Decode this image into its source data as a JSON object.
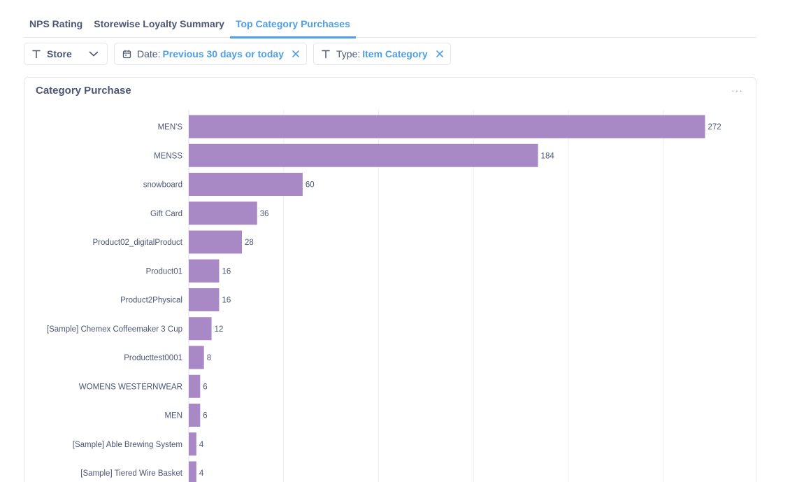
{
  "tabs": [
    {
      "label": "NPS Rating",
      "active": false
    },
    {
      "label": "Storewise Loyalty Summary",
      "active": false
    },
    {
      "label": "Top Category Purchases",
      "active": true
    }
  ],
  "filters": {
    "store": {
      "label": "Store",
      "icon": "text-type-icon"
    },
    "date": {
      "label": "Date:",
      "value": "Previous 30 days or today",
      "icon": "calendar-icon"
    },
    "type": {
      "label": "Type:",
      "value": "Item Category",
      "icon": "text-type-icon"
    }
  },
  "card": {
    "title": "Category Purchase",
    "menu": "···"
  },
  "colors": {
    "bar": "#a989c5",
    "accent": "#509ee3",
    "grid": "#edeef1",
    "text": "#4c5773"
  },
  "chart_data": {
    "type": "bar",
    "orientation": "horizontal",
    "categories": [
      "MEN'S",
      "MENSS",
      "snowboard",
      "Gift Card",
      "Product02_digitalProduct",
      "Product01",
      "Product2Physical",
      "[Sample] Chemex Coffeemaker 3 Cup",
      "Producttest0001",
      "WOMENS WESTERNWEAR",
      "MEN",
      "[Sample] Able Brewing System",
      "[Sample] Tiered Wire Basket"
    ],
    "values": [
      272,
      184,
      60,
      36,
      28,
      16,
      16,
      12,
      8,
      6,
      6,
      4,
      4
    ],
    "xlim": [
      0,
      300
    ],
    "grid": true,
    "data_labels": true
  }
}
